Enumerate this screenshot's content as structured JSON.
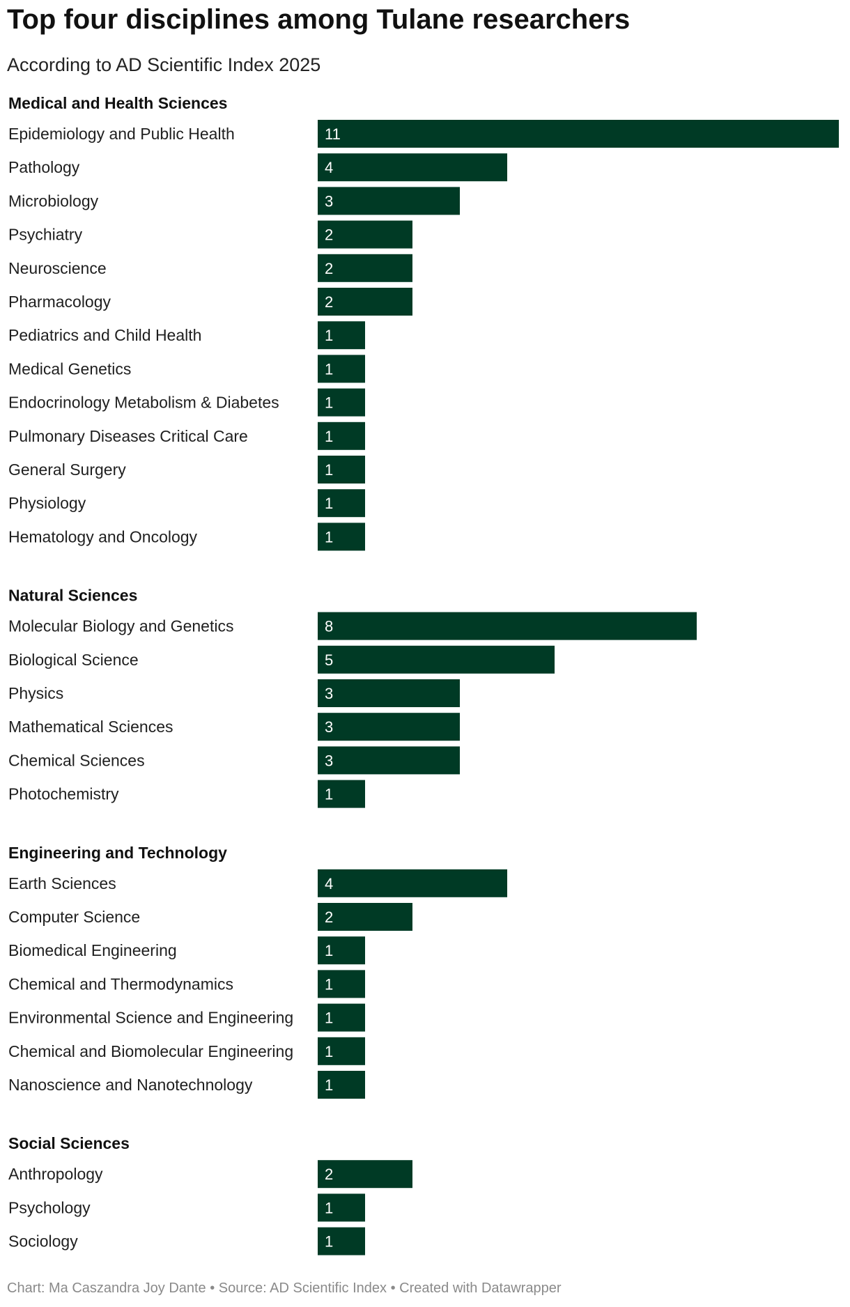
{
  "header": {
    "title": "Top four disciplines among Tulane researchers",
    "subtitle": "According to AD Scientific Index 2025"
  },
  "footer": {
    "credit": "Chart: Ma Caszandra Joy Dante • Source: AD Scientific Index • Created with Datawrapper"
  },
  "colors": {
    "bar": "#003a25",
    "bar_label": "#ffffff"
  },
  "chart_data": {
    "type": "bar",
    "orientation": "horizontal",
    "title": "Top four disciplines among Tulane researchers",
    "subtitle": "According to AD Scientific Index 2025",
    "xlim": [
      0,
      11
    ],
    "grid": false,
    "legend": "none",
    "groups": [
      {
        "name": "Medical and Health Sciences",
        "categories": [
          "Epidemiology and Public Health",
          "Pathology",
          "Microbiology",
          "Psychiatry",
          "Neuroscience",
          "Pharmacology",
          "Pediatrics and Child Health",
          "Medical Genetics",
          "Endocrinology Metabolism & Diabetes",
          "Pulmonary Diseases Critical Care",
          "General Surgery",
          "Physiology",
          "Hematology and Oncology"
        ],
        "values": [
          11,
          4,
          3,
          2,
          2,
          2,
          1,
          1,
          1,
          1,
          1,
          1,
          1
        ]
      },
      {
        "name": "Natural Sciences",
        "categories": [
          "Molecular Biology and Genetics",
          "Biological Science",
          "Physics",
          "Mathematical Sciences",
          "Chemical Sciences",
          "Photochemistry"
        ],
        "values": [
          8,
          5,
          3,
          3,
          3,
          1
        ]
      },
      {
        "name": "Engineering and Technology",
        "categories": [
          "Earth Sciences",
          "Computer Science",
          "Biomedical Engineering",
          "Chemical and Thermodynamics",
          "Environmental Science and Engineering",
          "Chemical and Biomolecular Engineering",
          "Nanoscience and Nanotechnology"
        ],
        "values": [
          4,
          2,
          1,
          1,
          1,
          1,
          1
        ]
      },
      {
        "name": "Social Sciences",
        "categories": [
          "Anthropology",
          "Psychology",
          "Sociology"
        ],
        "values": [
          2,
          1,
          1
        ]
      }
    ]
  }
}
